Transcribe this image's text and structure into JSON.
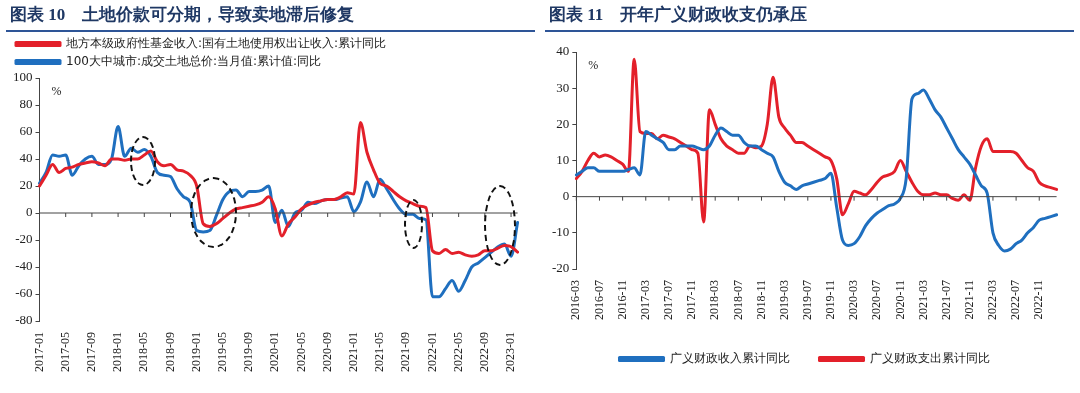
{
  "chart_data": [
    {
      "type": "line",
      "title": "图表 10　土地价款可分期，导致卖地滞后修复",
      "categories": [
        "2017-01",
        null,
        null,
        null,
        "2017-05",
        null,
        null,
        null,
        "2017-09",
        null,
        null,
        null,
        "2018-01",
        null,
        null,
        null,
        "2018-05",
        null,
        null,
        null,
        "2018-09",
        null,
        null,
        null,
        "2019-01",
        null,
        null,
        null,
        "2019-05",
        null,
        null,
        null,
        "2019-09",
        null,
        null,
        null,
        "2020-01",
        null,
        null,
        null,
        "2020-05",
        null,
        null,
        null,
        "2020-09",
        null,
        null,
        null,
        "2021-01",
        null,
        null,
        null,
        "2021-05",
        null,
        null,
        null,
        "2021-09",
        null,
        null,
        null,
        "2022-01",
        null,
        null,
        null,
        "2022-05",
        null,
        null,
        null,
        "2022-09",
        null,
        null,
        null,
        "2023-01",
        null
      ],
      "series": [
        {
          "name": "地方本级政府性基金收入:国有土地使用权出让收入:累计同比",
          "color": "#e3202a",
          "values": [
            20,
            28,
            36,
            30,
            33,
            34,
            36,
            37,
            38,
            37,
            35,
            40,
            40,
            39,
            40,
            40,
            43,
            46,
            38,
            35,
            36,
            32,
            31,
            28,
            20,
            -8,
            -10,
            -8,
            -4,
            0,
            3,
            4,
            5,
            6,
            8,
            12,
            3,
            -17,
            -8,
            -3,
            3,
            6,
            8,
            9,
            10,
            10,
            12,
            15,
            14,
            67,
            45,
            32,
            22,
            20,
            16,
            12,
            9,
            7,
            5,
            4,
            -28,
            -30,
            -27,
            -30,
            -29,
            -31,
            -32,
            -31,
            -28,
            -28,
            -26,
            -24,
            -25,
            -29
          ]
        },
        {
          "name": "100大中城市:成交土地总价:当月值:累计值:同比",
          "color": "#1f6fbf",
          "values": [
            22,
            30,
            43,
            42,
            43,
            28,
            35,
            40,
            42,
            36,
            36,
            40,
            64,
            42,
            48,
            45,
            47,
            42,
            30,
            28,
            27,
            18,
            12,
            8,
            -13,
            -14,
            -13,
            -2,
            10,
            16,
            17,
            12,
            16,
            16,
            17,
            20,
            -7,
            2,
            -10,
            0,
            2,
            8,
            7,
            9,
            10,
            10,
            11,
            12,
            1,
            8,
            23,
            12,
            25,
            18,
            10,
            3,
            -1,
            -1,
            -4,
            -5,
            -62,
            -62,
            -56,
            -50,
            -58,
            -50,
            -40,
            -37,
            -33,
            -29,
            -25,
            -23,
            -32,
            -7
          ]
        }
      ],
      "ylim": [
        -80,
        100
      ],
      "yticks": [
        -80,
        -60,
        -40,
        -20,
        0,
        20,
        40,
        60,
        80,
        100
      ],
      "legend": "top",
      "annotations": [
        "%"
      ]
    },
    {
      "type": "line",
      "title": "图表 11　开年广义财政收支仍承压",
      "categories": [
        "2016-03",
        null,
        null,
        null,
        "2016-07",
        null,
        null,
        null,
        "2016-11",
        null,
        null,
        null,
        "2017-03",
        null,
        null,
        null,
        "2017-07",
        null,
        null,
        null,
        "2017-11",
        null,
        null,
        null,
        "2018-03",
        null,
        null,
        null,
        "2018-07",
        null,
        null,
        null,
        "2018-11",
        null,
        null,
        null,
        "2019-03",
        null,
        null,
        null,
        "2019-07",
        null,
        null,
        null,
        "2019-11",
        null,
        null,
        null,
        "2020-03",
        null,
        null,
        null,
        "2020-07",
        null,
        null,
        null,
        "2020-11",
        null,
        null,
        null,
        "2021-03",
        null,
        null,
        null,
        "2021-07",
        null,
        null,
        null,
        "2021-11",
        null,
        null,
        null,
        "2022-03",
        null,
        null,
        null,
        "2022-07",
        null,
        null,
        null,
        "2022-11",
        null,
        null,
        null
      ],
      "series": [
        {
          "name": "广义财政收入累计同比",
          "color": "#1f6fbf",
          "values": [
            6,
            7,
            8,
            8,
            7,
            7,
            7,
            7,
            7,
            7.5,
            8,
            6,
            18,
            17,
            16,
            15,
            13,
            13,
            14,
            14,
            14,
            13.5,
            13,
            14,
            17,
            19,
            18,
            17,
            17,
            15,
            14,
            14,
            13,
            12,
            11,
            7,
            4,
            3,
            2,
            3,
            3.5,
            4,
            4.5,
            5,
            6.5,
            -3,
            -12,
            -13.5,
            -13,
            -11,
            -8,
            -6,
            -4.5,
            -3.5,
            -2.5,
            -2,
            -0.5,
            5,
            27,
            28.5,
            29.5,
            27,
            24,
            22,
            19,
            16,
            13,
            11,
            9,
            6,
            3,
            1,
            -10,
            -13.5,
            -15,
            -14.5,
            -13,
            -12,
            -10,
            -8.5,
            -6.5,
            -6,
            -5.5,
            -5
          ]
        },
        {
          "name": "广义财政支出累计同比",
          "color": "#e3202a",
          "values": [
            5,
            7,
            10,
            12,
            11,
            11.5,
            11,
            10,
            9,
            7,
            38,
            18,
            17.5,
            17.5,
            16,
            17,
            16.5,
            16,
            15,
            14,
            13,
            12,
            -7,
            24,
            20,
            16,
            14,
            13,
            12,
            12,
            14,
            13.5,
            14,
            20,
            33,
            22,
            19,
            17,
            15,
            15,
            14,
            13,
            12,
            11,
            10,
            5,
            -5,
            -2,
            1.5,
            1,
            0.5,
            2,
            4,
            5.5,
            6,
            7,
            10,
            7,
            4,
            1.5,
            0.5,
            0.5,
            1,
            0.5,
            0.5,
            -0.5,
            -1,
            0.5,
            -1,
            8,
            14,
            16,
            12.5,
            12.5,
            12.5,
            12.5,
            12,
            10,
            8,
            7,
            4,
            3,
            2.5,
            2
          ]
        }
      ],
      "ylim": [
        -20,
        40
      ],
      "yticks": [
        -20,
        -10,
        0,
        10,
        20,
        30,
        40
      ],
      "legend": "bottom",
      "annotations": [
        "%"
      ]
    }
  ]
}
